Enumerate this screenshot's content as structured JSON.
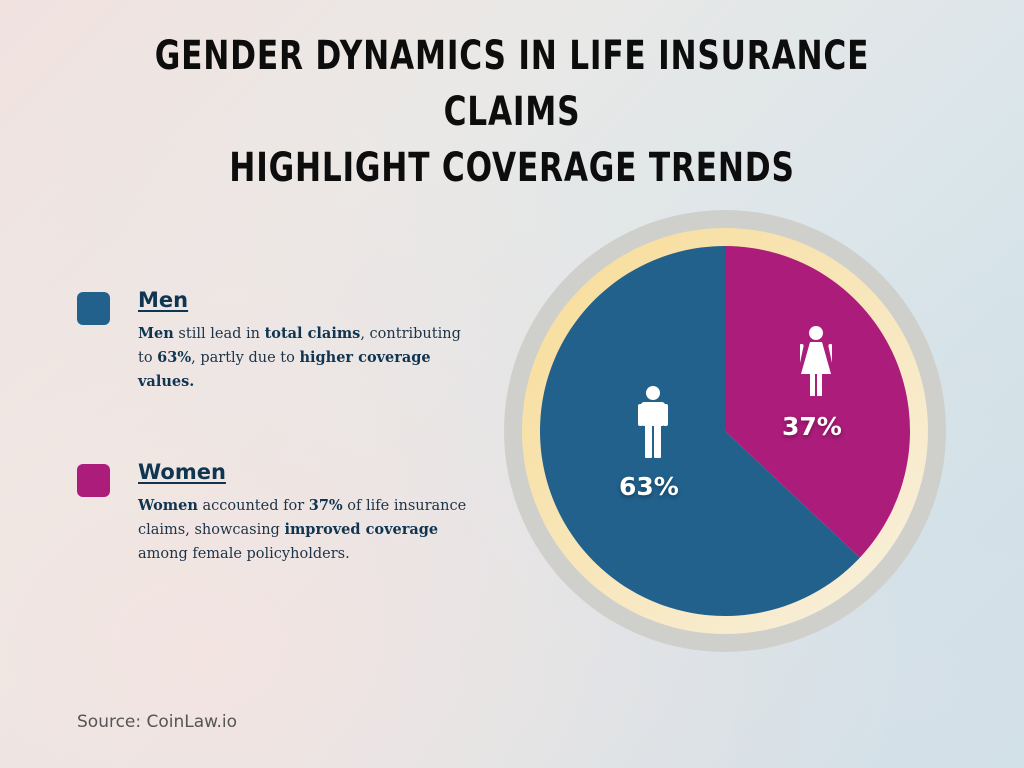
{
  "title": {
    "line1": "Gender Dynamics in Life Insurance Claims",
    "line2": "Highlight Coverage Trends"
  },
  "legend": [
    {
      "label": "Men",
      "color": "#21618c",
      "description_parts": [
        {
          "text": "Men",
          "bold": true
        },
        {
          "text": " still lead in ",
          "bold": false
        },
        {
          "text": "total claims",
          "bold": true
        },
        {
          "text": ", contributing to ",
          "bold": false
        },
        {
          "text": "63%",
          "bold": true
        },
        {
          "text": ", partly due to ",
          "bold": false
        },
        {
          "text": "higher coverage values.",
          "bold": true
        }
      ]
    },
    {
      "label": "Women",
      "color": "#ac1c7a",
      "description_parts": [
        {
          "text": "Women",
          "bold": true
        },
        {
          "text": " accounted for ",
          "bold": false
        },
        {
          "text": "37%",
          "bold": true
        },
        {
          "text": " of life insurance claims, showcasing ",
          "bold": false
        },
        {
          "text": "improved coverage",
          "bold": true
        },
        {
          "text": " among female policyholders.",
          "bold": false
        }
      ]
    }
  ],
  "pie": {
    "men_label": "63%",
    "women_label": "37%",
    "men_icon": "male-person-icon",
    "women_icon": "female-person-icon",
    "outer_ring_color": "#cfd0cc",
    "inner_ring_color": "#f7e2a8"
  },
  "source": "Source: CoinLaw.io",
  "chart_data": {
    "type": "pie",
    "title": "Gender Dynamics in Life Insurance Claims Highlight Coverage Trends",
    "categories": [
      "Men",
      "Women"
    ],
    "values": [
      63,
      37
    ],
    "unit": "%",
    "colors": [
      "#21618c",
      "#ac1c7a"
    ],
    "start_angle": "12 o'clock, Women slice clockwise first",
    "legend_position": "left"
  }
}
